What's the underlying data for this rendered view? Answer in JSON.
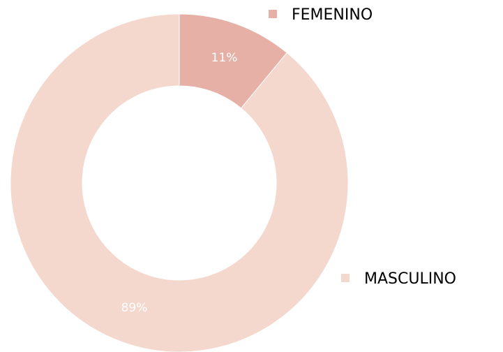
{
  "chart_data": {
    "type": "pie",
    "donut": true,
    "categories": [
      "FEMENINO",
      "MASCULINO"
    ],
    "values": [
      11,
      89
    ],
    "value_labels": [
      "11%",
      "89%"
    ],
    "colors": [
      "#e6b0a7",
      "#f4d7cd"
    ]
  }
}
